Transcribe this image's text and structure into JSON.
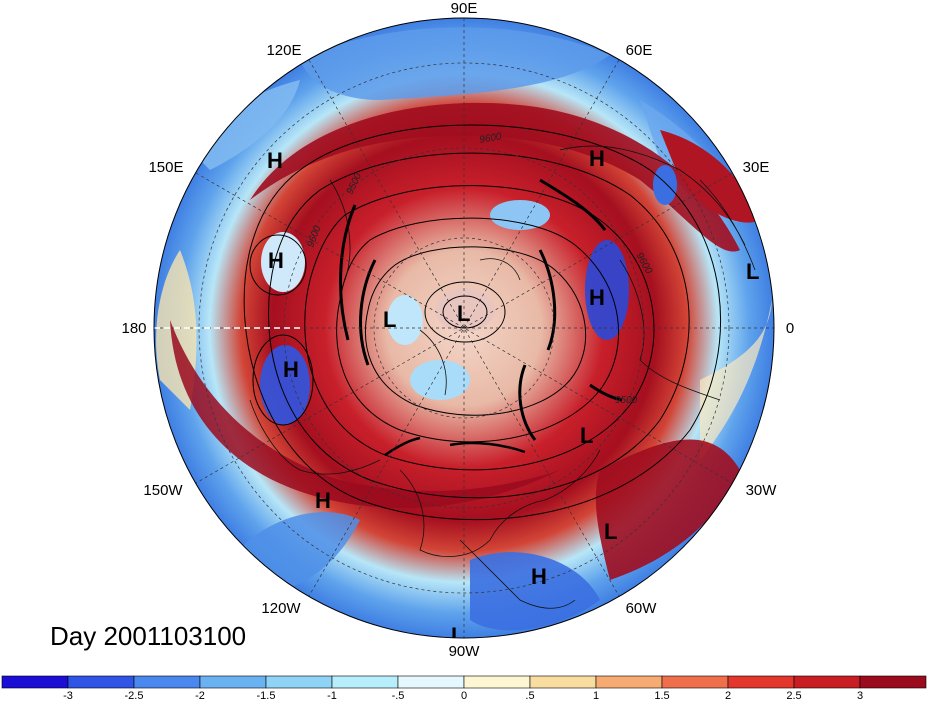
{
  "title": "Day 2001103100",
  "longitude_labels": {
    "lon_90e": "90E",
    "lon_60e": "60E",
    "lon_30e": "30E",
    "lon_0": "0",
    "lon_30w": "30W",
    "lon_60w": "60W",
    "lon_90w": "90W",
    "lon_120w": "120W",
    "lon_150w": "150W",
    "lon_180": "180",
    "lon_150e": "150E",
    "lon_120e": "120E"
  },
  "pressure_systems": [
    "H",
    "H",
    "H",
    "H",
    "H",
    "H",
    "H",
    "L",
    "L",
    "L",
    "L",
    "L",
    "L"
  ],
  "contour_labels": [
    "9600",
    "9600",
    "9600",
    "9500",
    "9500"
  ],
  "colorbar": {
    "ticks": [
      "-3",
      "-2.5",
      "-2",
      "-1.5",
      "-1",
      "-.5",
      "0",
      ".5",
      "1",
      "1.5",
      "2",
      "2.5",
      "3"
    ],
    "colors": [
      "#1b0fd6",
      "#2f54e6",
      "#4a87ee",
      "#6bb2f3",
      "#8fd4f6",
      "#b7eefb",
      "#e4f8fd",
      "#fdf6d2",
      "#f9dca0",
      "#f6ab73",
      "#ef6f4d",
      "#e3372e",
      "#c81d23",
      "#9a0b1e"
    ]
  }
}
